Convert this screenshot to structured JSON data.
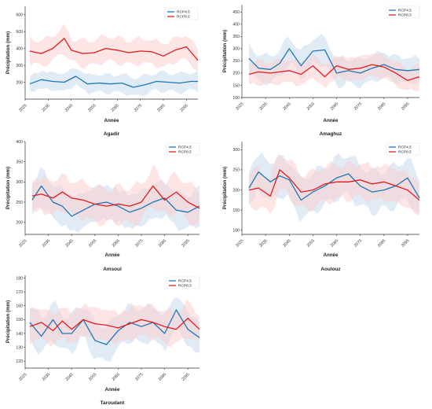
{
  "chart_data": [
    {
      "type": "line",
      "caption": "Agadir",
      "xlabel": "Année",
      "ylabel": "Précipitation (mm)",
      "xlim": [
        2025,
        2100
      ],
      "ylim": [
        100,
        650
      ],
      "yticks": [
        200,
        300,
        400,
        500,
        600
      ],
      "xticks": [
        2025,
        2035,
        2045,
        2055,
        2065,
        2075,
        2085,
        2095
      ],
      "legend_position": "top-right",
      "series": [
        {
          "name": "RCP4.5",
          "color": "#1f77b4",
          "band_color": "#c6dbef",
          "x": [
            2027,
            2032,
            2037,
            2042,
            2047,
            2052,
            2057,
            2062,
            2067,
            2072,
            2077,
            2082,
            2087,
            2092,
            2097,
            2100
          ],
          "y": [
            190,
            215,
            205,
            200,
            235,
            190,
            195,
            190,
            195,
            170,
            185,
            205,
            200,
            195,
            205,
            205
          ],
          "band_halfwidth": 55
        },
        {
          "name": "RCP8.5",
          "color": "#e41a1c",
          "band_color": "#fbd0cf",
          "x": [
            2027,
            2032,
            2037,
            2042,
            2045,
            2050,
            2055,
            2060,
            2065,
            2070,
            2075,
            2080,
            2085,
            2090,
            2095,
            2100
          ],
          "y": [
            385,
            370,
            400,
            460,
            390,
            370,
            375,
            400,
            390,
            375,
            385,
            380,
            355,
            390,
            410,
            330
          ],
          "band_halfwidth": 75
        }
      ]
    },
    {
      "type": "line",
      "caption": "Amaghuz",
      "xlabel": "Année",
      "ylabel": "Précipitation (mm)",
      "xlim": [
        2025,
        2100
      ],
      "ylim": [
        100,
        480
      ],
      "yticks": [
        100,
        150,
        200,
        250,
        300,
        350,
        400,
        450
      ],
      "xticks": [
        2025,
        2035,
        2045,
        2055,
        2065,
        2075,
        2085,
        2095
      ],
      "legend_position": "top-right",
      "series": [
        {
          "name": "RCP4.5",
          "color": "#1f77b4",
          "band_color": "#c6dbef",
          "x": [
            2028,
            2032,
            2037,
            2041,
            2045,
            2050,
            2055,
            2060,
            2065,
            2070,
            2075,
            2080,
            2085,
            2090,
            2095,
            2100
          ],
          "y": [
            260,
            220,
            215,
            240,
            300,
            230,
            290,
            295,
            200,
            210,
            200,
            220,
            235,
            215,
            210,
            215
          ],
          "band_halfwidth": 55
        },
        {
          "name": "RCP8.5",
          "color": "#e41a1c",
          "band_color": "#fbd0cf",
          "x": [
            2028,
            2032,
            2037,
            2041,
            2045,
            2050,
            2055,
            2060,
            2065,
            2070,
            2075,
            2080,
            2085,
            2090,
            2095,
            2100
          ],
          "y": [
            195,
            205,
            200,
            205,
            210,
            195,
            230,
            185,
            230,
            215,
            220,
            235,
            225,
            200,
            170,
            185
          ],
          "band_halfwidth": 50
        }
      ]
    },
    {
      "type": "line",
      "caption": "Amsoul",
      "xlabel": "Année",
      "ylabel": "Précipitation (mm)",
      "xlim": [
        2025,
        2100
      ],
      "ylim": [
        170,
        400
      ],
      "yticks": [
        200,
        250,
        300,
        350,
        400
      ],
      "xticks": [
        2025,
        2035,
        2045,
        2055,
        2065,
        2075,
        2085,
        2095
      ],
      "legend_position": "top-right",
      "series": [
        {
          "name": "RCP4.5",
          "color": "#1f77b4",
          "band_color": "#c6dbef",
          "x": [
            2028,
            2032,
            2037,
            2041,
            2045,
            2050,
            2055,
            2060,
            2065,
            2070,
            2075,
            2080,
            2085,
            2090,
            2095,
            2100
          ],
          "y": [
            255,
            290,
            250,
            240,
            215,
            230,
            245,
            250,
            240,
            225,
            235,
            250,
            260,
            230,
            225,
            240
          ],
          "band_halfwidth": 45
        },
        {
          "name": "RCP8.5",
          "color": "#e41a1c",
          "band_color": "#fbd0cf",
          "x": [
            2028,
            2032,
            2037,
            2041,
            2045,
            2050,
            2055,
            2060,
            2065,
            2070,
            2075,
            2080,
            2085,
            2090,
            2095,
            2100
          ],
          "y": [
            265,
            270,
            260,
            275,
            260,
            255,
            245,
            240,
            245,
            240,
            250,
            290,
            255,
            275,
            250,
            235
          ],
          "band_halfwidth": 45
        }
      ]
    },
    {
      "type": "line",
      "caption": "Aoulouz",
      "xlabel": "Année",
      "ylabel": "Précipitation (mm)",
      "xlim": [
        2025,
        2100
      ],
      "ylim": [
        90,
        320
      ],
      "yticks": [
        100,
        150,
        200,
        250,
        300
      ],
      "xticks": [
        2025,
        2035,
        2045,
        2055,
        2065,
        2075,
        2085,
        2095
      ],
      "legend_position": "top-right",
      "series": [
        {
          "name": "RCP4.5",
          "color": "#1f77b4",
          "band_color": "#c6dbef",
          "x": [
            2028,
            2032,
            2037,
            2041,
            2045,
            2050,
            2055,
            2060,
            2065,
            2070,
            2075,
            2080,
            2085,
            2090,
            2095,
            2100
          ],
          "y": [
            205,
            245,
            220,
            235,
            225,
            175,
            195,
            210,
            230,
            240,
            210,
            195,
            200,
            210,
            230,
            180
          ],
          "band_halfwidth": 50
        },
        {
          "name": "RCP8.5",
          "color": "#e41a1c",
          "band_color": "#fbd0cf",
          "x": [
            2028,
            2032,
            2037,
            2041,
            2045,
            2050,
            2055,
            2060,
            2065,
            2070,
            2075,
            2080,
            2085,
            2090,
            2095,
            2100
          ],
          "y": [
            200,
            205,
            185,
            250,
            230,
            195,
            200,
            215,
            220,
            220,
            225,
            215,
            220,
            210,
            200,
            175
          ],
          "band_halfwidth": 45
        }
      ]
    },
    {
      "type": "line",
      "caption": "Taroudant",
      "xlabel": "Année",
      "ylabel": "Précipitation (mm)",
      "xlim": [
        2025,
        2100
      ],
      "ylim": [
        115,
        182
      ],
      "yticks": [
        120,
        130,
        140,
        150,
        160,
        170,
        180
      ],
      "xticks": [
        2025,
        2035,
        2045,
        2055,
        2065,
        2075,
        2085,
        2095
      ],
      "legend_position": "top-right",
      "series": [
        {
          "name": "RCP4.5",
          "color": "#1f77b4",
          "band_color": "#c6dbef",
          "x": [
            2027,
            2032,
            2037,
            2041,
            2045,
            2050,
            2055,
            2060,
            2065,
            2070,
            2075,
            2080,
            2085,
            2090,
            2095,
            2100
          ],
          "y": [
            148,
            138,
            150,
            140,
            140,
            150,
            135,
            132,
            142,
            148,
            145,
            148,
            140,
            157,
            143,
            137
          ],
          "band_halfwidth": 13
        },
        {
          "name": "RCP8.5",
          "color": "#e41a1c",
          "band_color": "#fbd0cf",
          "x": [
            2027,
            2032,
            2037,
            2041,
            2045,
            2050,
            2055,
            2060,
            2065,
            2070,
            2075,
            2080,
            2085,
            2090,
            2095,
            2100
          ],
          "y": [
            145,
            148,
            142,
            149,
            143,
            150,
            147,
            146,
            144,
            147,
            150,
            148,
            145,
            143,
            151,
            143
          ],
          "band_halfwidth": 12
        }
      ]
    }
  ]
}
